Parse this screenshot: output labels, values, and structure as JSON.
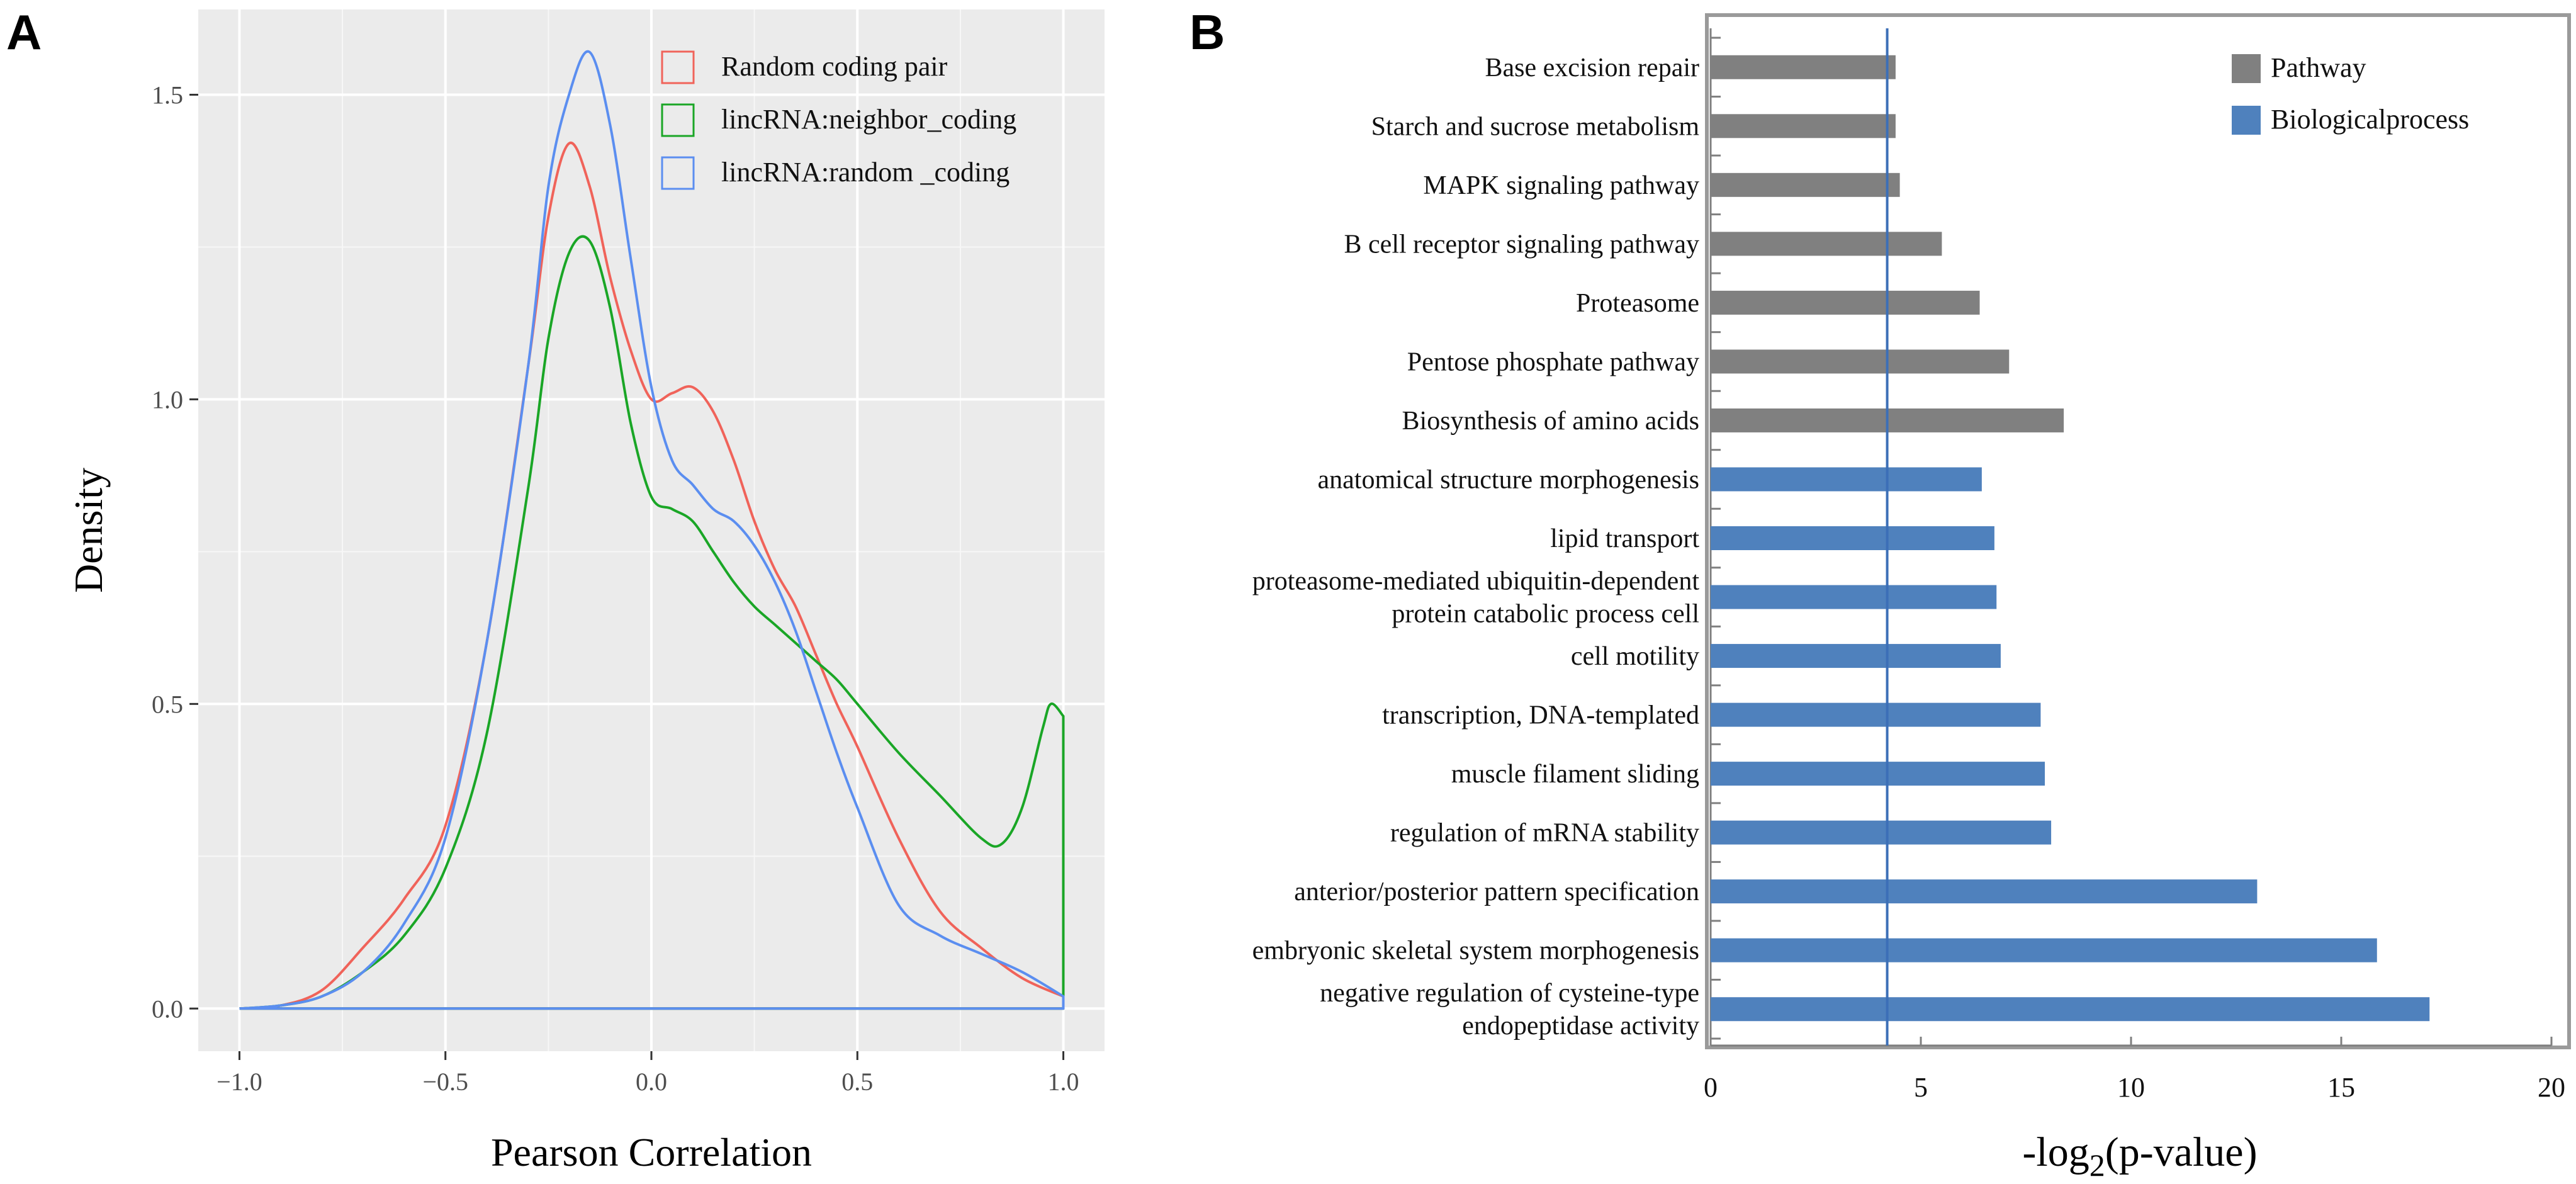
{
  "chart_data": [
    {
      "panel_label": "A",
      "type": "line",
      "subtype": "density",
      "xlabel": "Pearson Correlation",
      "ylabel": "Density",
      "xlim": [
        -1.1,
        1.1
      ],
      "ylim": [
        -0.07,
        1.64
      ],
      "x_ticks": [
        -1.0,
        -0.5,
        0.0,
        0.5,
        1.0
      ],
      "x_tick_labels": [
        "−1.0",
        "−0.5",
        "0.0",
        "0.5",
        "1.0"
      ],
      "y_ticks": [
        0.0,
        0.5,
        1.0,
        1.5
      ],
      "y_tick_labels": [
        "0.0",
        "0.5",
        "1.0",
        "1.5"
      ],
      "grid": true,
      "legend_position": "top-right",
      "series": [
        {
          "name": "Random coding pair",
          "color": "#f0635a",
          "x": [
            -1.0,
            -0.9,
            -0.8,
            -0.7,
            -0.6,
            -0.5,
            -0.4,
            -0.3,
            -0.25,
            -0.2,
            -0.15,
            -0.1,
            -0.05,
            0.0,
            0.05,
            0.1,
            0.15,
            0.2,
            0.25,
            0.3,
            0.35,
            0.4,
            0.45,
            0.5,
            0.6,
            0.7,
            0.8,
            0.9,
            1.0
          ],
          "y": [
            0.0,
            0.005,
            0.03,
            0.1,
            0.18,
            0.3,
            0.6,
            1.05,
            1.3,
            1.42,
            1.35,
            1.2,
            1.08,
            1.0,
            1.01,
            1.02,
            0.98,
            0.9,
            0.8,
            0.72,
            0.66,
            0.58,
            0.5,
            0.43,
            0.28,
            0.16,
            0.1,
            0.05,
            0.02
          ]
        },
        {
          "name": "lincRNA:neighbor_coding",
          "color": "#1aa626",
          "x": [
            -1.0,
            -0.9,
            -0.8,
            -0.7,
            -0.6,
            -0.5,
            -0.4,
            -0.3,
            -0.25,
            -0.2,
            -0.15,
            -0.1,
            -0.05,
            0.0,
            0.05,
            0.1,
            0.15,
            0.2,
            0.25,
            0.3,
            0.35,
            0.4,
            0.45,
            0.5,
            0.6,
            0.7,
            0.8,
            0.85,
            0.9,
            0.95,
            0.97,
            1.0
          ],
          "y": [
            0.0,
            0.005,
            0.02,
            0.06,
            0.12,
            0.23,
            0.45,
            0.85,
            1.1,
            1.24,
            1.26,
            1.15,
            0.96,
            0.84,
            0.82,
            0.8,
            0.75,
            0.7,
            0.66,
            0.63,
            0.6,
            0.57,
            0.54,
            0.5,
            0.42,
            0.35,
            0.28,
            0.27,
            0.33,
            0.46,
            0.5,
            0.48
          ]
        },
        {
          "name": "lincRNA:random _coding",
          "color": "#5b8ef0",
          "x": [
            -1.0,
            -0.9,
            -0.8,
            -0.7,
            -0.6,
            -0.5,
            -0.4,
            -0.3,
            -0.25,
            -0.2,
            -0.15,
            -0.1,
            -0.05,
            0.0,
            0.05,
            0.1,
            0.15,
            0.2,
            0.25,
            0.3,
            0.35,
            0.4,
            0.45,
            0.5,
            0.6,
            0.7,
            0.8,
            0.9,
            1.0
          ],
          "y": [
            0.0,
            0.005,
            0.02,
            0.06,
            0.14,
            0.28,
            0.6,
            1.05,
            1.35,
            1.5,
            1.57,
            1.45,
            1.23,
            1.02,
            0.9,
            0.86,
            0.82,
            0.8,
            0.76,
            0.7,
            0.62,
            0.52,
            0.42,
            0.33,
            0.17,
            0.12,
            0.09,
            0.06,
            0.02
          ]
        }
      ]
    },
    {
      "panel_label": "B",
      "type": "bar",
      "orientation": "horizontal",
      "xlabel_main": "-log",
      "xlabel_sub": "2",
      "xlabel_tail": "(p-value)",
      "xlim": [
        0,
        20
      ],
      "x_ticks": [
        0,
        5,
        10,
        15,
        20
      ],
      "x_tick_labels": [
        "0",
        "5",
        "10",
        "15",
        "20"
      ],
      "reference_line_x": 4.2,
      "legend_position": "top-right",
      "legend": [
        {
          "name": "Pathway",
          "color": "#808080"
        },
        {
          "name": "Biologicalprocess",
          "color": "#4f81bd"
        }
      ],
      "categories": [
        {
          "lines": [
            "Base excision repair"
          ],
          "value": 4.4,
          "group": "Pathway"
        },
        {
          "lines": [
            "Starch and sucrose metabolism"
          ],
          "value": 4.4,
          "group": "Pathway"
        },
        {
          "lines": [
            "MAPK signaling pathway"
          ],
          "value": 4.5,
          "group": "Pathway"
        },
        {
          "lines": [
            "B cell receptor signaling pathway"
          ],
          "value": 5.5,
          "group": "Pathway"
        },
        {
          "lines": [
            "Proteasome"
          ],
          "value": 6.4,
          "group": "Pathway"
        },
        {
          "lines": [
            "Pentose phosphate pathway"
          ],
          "value": 7.1,
          "group": "Pathway"
        },
        {
          "lines": [
            "Biosynthesis of amino acids"
          ],
          "value": 8.4,
          "group": "Pathway"
        },
        {
          "lines": [
            "anatomical structure morphogenesis"
          ],
          "value": 6.45,
          "group": "Biologicalprocess"
        },
        {
          "lines": [
            "lipid transport"
          ],
          "value": 6.75,
          "group": "Biologicalprocess"
        },
        {
          "lines": [
            "proteasome-mediated ubiquitin-dependent",
            "protein catabolic process cell"
          ],
          "value": 6.8,
          "group": "Biologicalprocess"
        },
        {
          "lines": [
            "cell motility"
          ],
          "value": 6.9,
          "group": "Biologicalprocess"
        },
        {
          "lines": [
            "transcription, DNA-templated"
          ],
          "value": 7.85,
          "group": "Biologicalprocess"
        },
        {
          "lines": [
            "muscle filament sliding"
          ],
          "value": 7.95,
          "group": "Biologicalprocess"
        },
        {
          "lines": [
            "regulation of mRNA stability"
          ],
          "value": 8.1,
          "group": "Biologicalprocess"
        },
        {
          "lines": [
            "anterior/posterior pattern specification"
          ],
          "value": 13.0,
          "group": "Biologicalprocess"
        },
        {
          "lines": [
            "embryonic skeletal system morphogenesis"
          ],
          "value": 15.85,
          "group": "Biologicalprocess"
        },
        {
          "lines": [
            "negative regulation of cysteine-type",
            "endopeptidase activity"
          ],
          "value": 17.1,
          "group": "Biologicalprocess"
        }
      ]
    }
  ]
}
